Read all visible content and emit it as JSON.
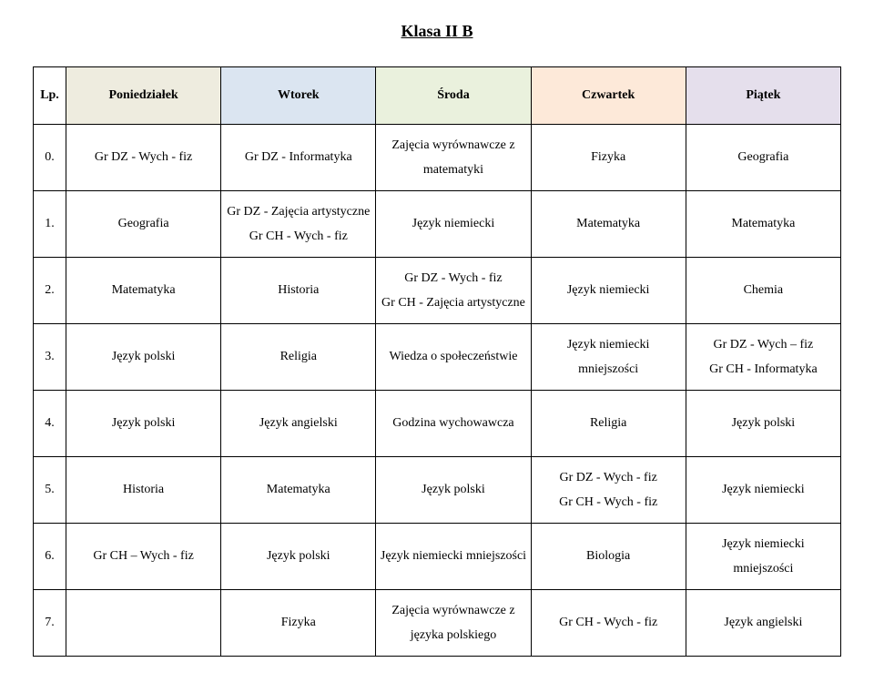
{
  "title": "Klasa II B",
  "header": {
    "lp": "Lp.",
    "mon": "Poniedziałek",
    "tue": "Wtorek",
    "wed": "Środa",
    "thu": "Czwartek",
    "fri": "Piątek"
  },
  "header_colors": {
    "lp": "#ffffff",
    "mon": "#eeecdf",
    "tue": "#dbe5f1",
    "wed": "#eaf1dd",
    "thu": "#fde9d9",
    "fri": "#e5dfec"
  },
  "rows": [
    {
      "lp": "0.",
      "mon": "Gr DZ - Wych - fiz",
      "tue": "Gr DZ - Informatyka",
      "wed_line1": "Zajęcia wyrównawcze z",
      "wed_line2": "matematyki",
      "thu": "Fizyka",
      "fri": "Geografia"
    },
    {
      "lp": "1.",
      "mon": "Geografia",
      "tue_line1": "Gr DZ - Zajęcia artystyczne",
      "tue_line2": "Gr CH - Wych - fiz",
      "wed": "Język niemiecki",
      "thu": "Matematyka",
      "fri": "Matematyka"
    },
    {
      "lp": "2.",
      "mon": "Matematyka",
      "tue": "Historia",
      "wed_line1": "Gr DZ - Wych - fiz",
      "wed_line2": "Gr CH - Zajęcia artystyczne",
      "thu": "Język niemiecki",
      "fri": "Chemia"
    },
    {
      "lp": "3.",
      "mon": "Język polski",
      "tue": "Religia",
      "wed": "Wiedza o społeczeństwie",
      "thu_line1": "Język niemiecki",
      "thu_line2": "mniejszości",
      "fri_line1": "Gr DZ - Wych – fiz",
      "fri_line2": "Gr CH - Informatyka"
    },
    {
      "lp": "4.",
      "mon": "Język polski",
      "tue": "Język angielski",
      "wed": "Godzina wychowawcza",
      "thu": "Religia",
      "fri": "Język polski"
    },
    {
      "lp": "5.",
      "mon": "Historia",
      "tue": "Matematyka",
      "wed": "Język polski",
      "thu_line1": "Gr DZ - Wych - fiz",
      "thu_line2": "Gr CH - Wych - fiz",
      "fri": "Język niemiecki"
    },
    {
      "lp": "6.",
      "mon": "Gr CH – Wych - fiz",
      "tue": "Język polski",
      "wed": "Język niemiecki mniejszości",
      "thu": "Biologia",
      "fri_line1": "Język niemiecki",
      "fri_line2": "mniejszości"
    },
    {
      "lp": "7.",
      "mon": "",
      "tue": "Fizyka",
      "wed_line1": "Zajęcia wyrównawcze z",
      "wed_line2": "języka polskiego",
      "thu": "Gr CH - Wych - fiz",
      "fri": "Język angielski"
    }
  ]
}
